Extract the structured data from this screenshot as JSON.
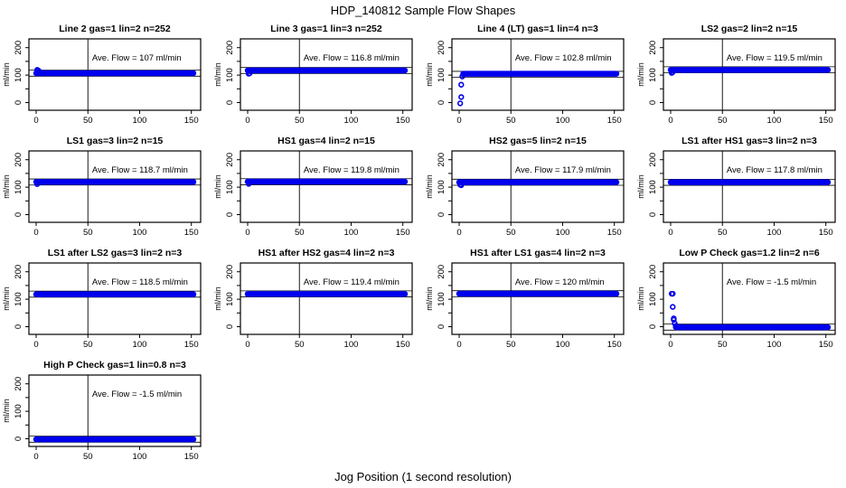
{
  "title": "HDP_140812  Sample Flow Shapes",
  "xlabel": "Jog Position (1 second resolution)",
  "colors": {
    "point": "#0000EE",
    "axis": "#000000",
    "background": "#ffffff"
  },
  "chart_data": {
    "type": "scatter",
    "grid_layout": "4x4, 13 panels",
    "xlim": [
      -7,
      159
    ],
    "ylim": [
      -28,
      232
    ],
    "xticks_labeled": [
      0,
      50,
      100,
      150
    ],
    "yticks_all": [
      0,
      50,
      100,
      150,
      200
    ],
    "yticks_labeled": [
      0,
      100,
      200
    ],
    "ylabel": "ml/min",
    "vline_x": 50,
    "ref_line_offset": 11,
    "band_x_end": 152,
    "panels": [
      {
        "title": "Line 2 gas=1 lin=2 n=252",
        "ave_flow": 107,
        "ave_label": "Ave. Flow =  107  ml/min",
        "band_y": 107,
        "band_start": 0,
        "prefix": [
          [
            1,
            119
          ],
          [
            2,
            117
          ],
          [
            3,
            113
          ],
          [
            4,
            110
          ]
        ]
      },
      {
        "title": "Line 3 gas=1 lin=3 n=252",
        "ave_flow": 116.8,
        "ave_label": "Ave. Flow =  116.8  ml/min",
        "band_y": 117,
        "band_start": 0,
        "prefix": [
          [
            1,
            105
          ],
          [
            2,
            107
          ]
        ]
      },
      {
        "title": "Line 4 (LT) gas=1 lin=4 n=3",
        "ave_flow": 102.8,
        "ave_label": "Ave. Flow =  102.8  ml/min",
        "band_y": 105,
        "band_start": 4,
        "prefix": [
          [
            1,
            -3
          ],
          [
            2,
            20
          ],
          [
            2,
            65
          ],
          [
            3,
            95
          ],
          [
            4,
            103
          ]
        ]
      },
      {
        "title": "LS2 gas=2 lin=2 n=15",
        "ave_flow": 119.5,
        "ave_label": "Ave. Flow =  119.5  ml/min",
        "band_y": 119,
        "band_start": 0,
        "prefix": [
          [
            1,
            108
          ],
          [
            2,
            111
          ]
        ]
      },
      {
        "title": "LS1 gas=3 lin=2 n=15",
        "ave_flow": 118.7,
        "ave_label": "Ave. Flow =  118.7  ml/min",
        "band_y": 119,
        "band_start": 0,
        "prefix": [
          [
            1,
            111
          ]
        ]
      },
      {
        "title": "HS1 gas=4 lin=2 n=15",
        "ave_flow": 119.8,
        "ave_label": "Ave. Flow =  119.8  ml/min",
        "band_y": 120,
        "band_start": 0,
        "prefix": [
          [
            1,
            112
          ]
        ]
      },
      {
        "title": "HS2 gas=5 lin=2 n=15",
        "ave_flow": 117.9,
        "ave_label": "Ave. Flow =  117.9  ml/min",
        "band_y": 118,
        "band_start": 0,
        "prefix": [
          [
            1,
            109
          ],
          [
            2,
            107
          ]
        ]
      },
      {
        "title": "LS1 after HS1 gas=3 lin=2 n=3",
        "ave_flow": 117.8,
        "ave_label": "Ave. Flow =  117.8  ml/min",
        "band_y": 118,
        "band_start": 0,
        "prefix": []
      },
      {
        "title": "LS1 after LS2 gas=3 lin=2 n=3",
        "ave_flow": 118.5,
        "ave_label": "Ave. Flow =  118.5  ml/min",
        "band_y": 118,
        "band_start": 0,
        "prefix": []
      },
      {
        "title": "HS1 after HS2 gas=4 lin=2 n=3",
        "ave_flow": 119.4,
        "ave_label": "Ave. Flow =  119.4  ml/min",
        "band_y": 119,
        "band_start": 0,
        "prefix": []
      },
      {
        "title": "HS1 after LS1 gas=4 lin=2 n=3",
        "ave_flow": 120,
        "ave_label": "Ave. Flow =  120  ml/min",
        "band_y": 120,
        "band_start": 0,
        "prefix": []
      },
      {
        "title": "Low P Check gas=1.2 lin=2 n=6",
        "ave_flow": -1.5,
        "ave_label": "Ave. Flow =  -1.5  ml/min",
        "band_y": -2,
        "band_start": 5,
        "prefix": [
          [
            1,
            120
          ],
          [
            2,
            120
          ],
          [
            2,
            72
          ],
          [
            3,
            30
          ],
          [
            3,
            25
          ],
          [
            4,
            12
          ],
          [
            5,
            3
          ]
        ]
      },
      {
        "title": "High P Check gas=1 lin=0.8 n=3",
        "ave_flow": -1.5,
        "ave_label": "Ave. Flow =  -1.5  ml/min",
        "band_y": -2,
        "band_start": 0,
        "prefix": []
      }
    ]
  }
}
